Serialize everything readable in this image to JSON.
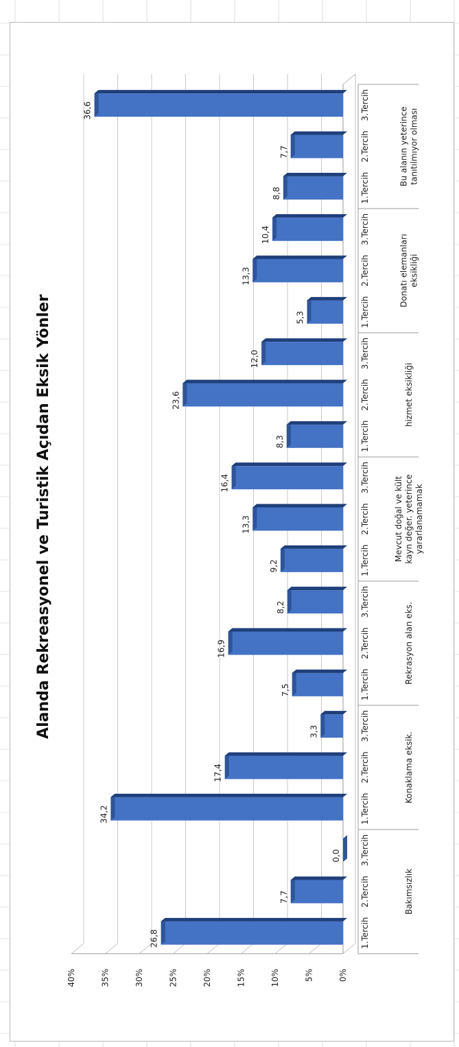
{
  "chart_data": {
    "type": "bar",
    "title": "Alanda Rekreasyonel ve Turistik Açıdan Eksik Yönler",
    "y_ticks": [
      "0%",
      "5%",
      "10%",
      "15%",
      "20%",
      "25%",
      "30%",
      "35%",
      "40%"
    ],
    "ylim": [
      0,
      40
    ],
    "grid": true,
    "groups": [
      {
        "name": "Bakımsızlık",
        "lines": [
          "Bakımsızlık"
        ],
        "prefs": [
          "1.Tercih",
          "2.Tercih",
          "3.Tercih"
        ],
        "values": [
          26.8,
          7.7,
          0.0
        ],
        "labels": [
          "26,8",
          "7,7",
          "0,0"
        ]
      },
      {
        "name": "Konaklama eksik.",
        "lines": [
          "Konaklama eksik."
        ],
        "prefs": [
          "1.Tercih",
          "2.Tercih",
          "3.Tercih"
        ],
        "values": [
          34.2,
          17.4,
          3.3
        ],
        "labels": [
          "34,2",
          "17,4",
          "3,3"
        ]
      },
      {
        "name": "Rekrasyon alan eks.",
        "lines": [
          "Rekrasyon alan eks."
        ],
        "prefs": [
          "1.Tercih",
          "2.Tercih",
          "3.Tercih"
        ],
        "values": [
          7.5,
          16.9,
          8.2
        ],
        "labels": [
          "7,5",
          "16,9",
          "8,2"
        ]
      },
      {
        "name": "Mevcut doğal ve kült kayn değer. yeterince yararlanamamak",
        "lines": [
          "Mevcut doğal ve kült",
          "kayn değer. yeterince",
          "yararlanamamak"
        ],
        "prefs": [
          "1.Tercih",
          "2.Tercih",
          "3.Tercih"
        ],
        "values": [
          9.2,
          13.3,
          16.4
        ],
        "labels": [
          "9,2",
          "13,3",
          "16,4"
        ]
      },
      {
        "name": "hizmet eksikliği",
        "lines": [
          "hizmet eksikliği"
        ],
        "prefs": [
          "1.Tercih",
          "2.Tercih",
          "3.Tercih"
        ],
        "values": [
          8.3,
          23.6,
          12.0
        ],
        "labels": [
          "8,3",
          "23,6",
          "12,0"
        ]
      },
      {
        "name": "Donatı elemanları eksikliği",
        "lines": [
          "Donatı elemanları",
          "eksikliği"
        ],
        "prefs": [
          "1.Tercih",
          "2.Tercih",
          "3.Tercih"
        ],
        "values": [
          5.3,
          13.3,
          10.4
        ],
        "labels": [
          "5,3",
          "13,3",
          "10,4"
        ]
      },
      {
        "name": "Bu alanın yeterince tanıtılmıyor olması",
        "lines": [
          "Bu alanın yeterince",
          "tanıtılmıyor olması"
        ],
        "prefs": [
          "1.Tercih",
          "2.Tercih",
          "3.Tercih"
        ],
        "values": [
          8.8,
          7.7,
          36.6
        ],
        "labels": [
          "8,8",
          "7,7",
          "36,6"
        ]
      }
    ],
    "colors": {
      "bar_front": "#4472C4",
      "bar_top": "#2F5597",
      "bar_side": "#1F3F7A",
      "grid": "#c8c8c8"
    }
  }
}
